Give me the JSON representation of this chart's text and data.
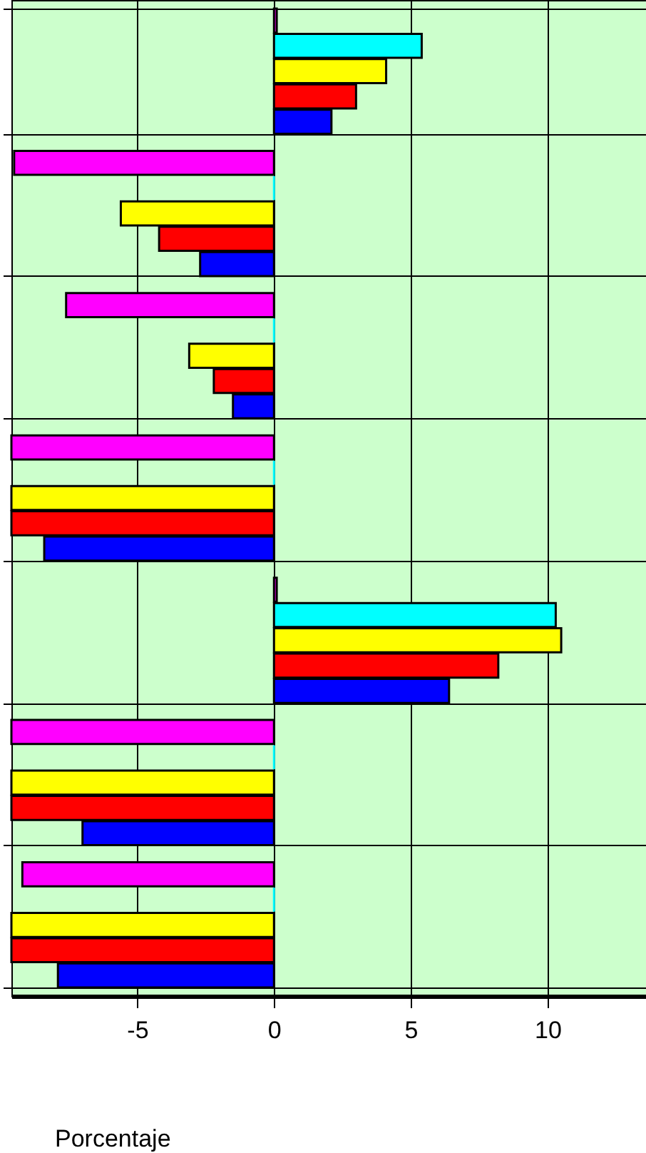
{
  "chart_data": {
    "type": "bar",
    "orientation": "horizontal",
    "xlabel": "Porcentaje",
    "categories": [
      null,
      null,
      null,
      null,
      null,
      null,
      null
    ],
    "series": [
      {
        "color": "#ff00ff",
        "values": [
          0.1,
          -9.5,
          -7.6,
          -9.6,
          0.1,
          -9.6,
          -9.2
        ]
      },
      {
        "color": "#00ffff",
        "values": [
          5.4,
          0,
          0,
          0,
          10.3,
          0,
          0
        ]
      },
      {
        "color": "#ffff00",
        "values": [
          4.1,
          -5.6,
          -3.1,
          -9.6,
          10.5,
          -9.6,
          -9.6
        ]
      },
      {
        "color": "#ff0000",
        "values": [
          3.0,
          -4.2,
          -2.2,
          -9.6,
          8.2,
          -9.6,
          -9.6
        ]
      },
      {
        "color": "#0000ff",
        "values": [
          2.1,
          -2.7,
          -1.5,
          -8.4,
          6.4,
          -7.0,
          -7.9
        ]
      }
    ],
    "xlim": [
      -9.6,
      13.6
    ],
    "xticks": [
      -5,
      0,
      5,
      10
    ],
    "grid": true
  }
}
